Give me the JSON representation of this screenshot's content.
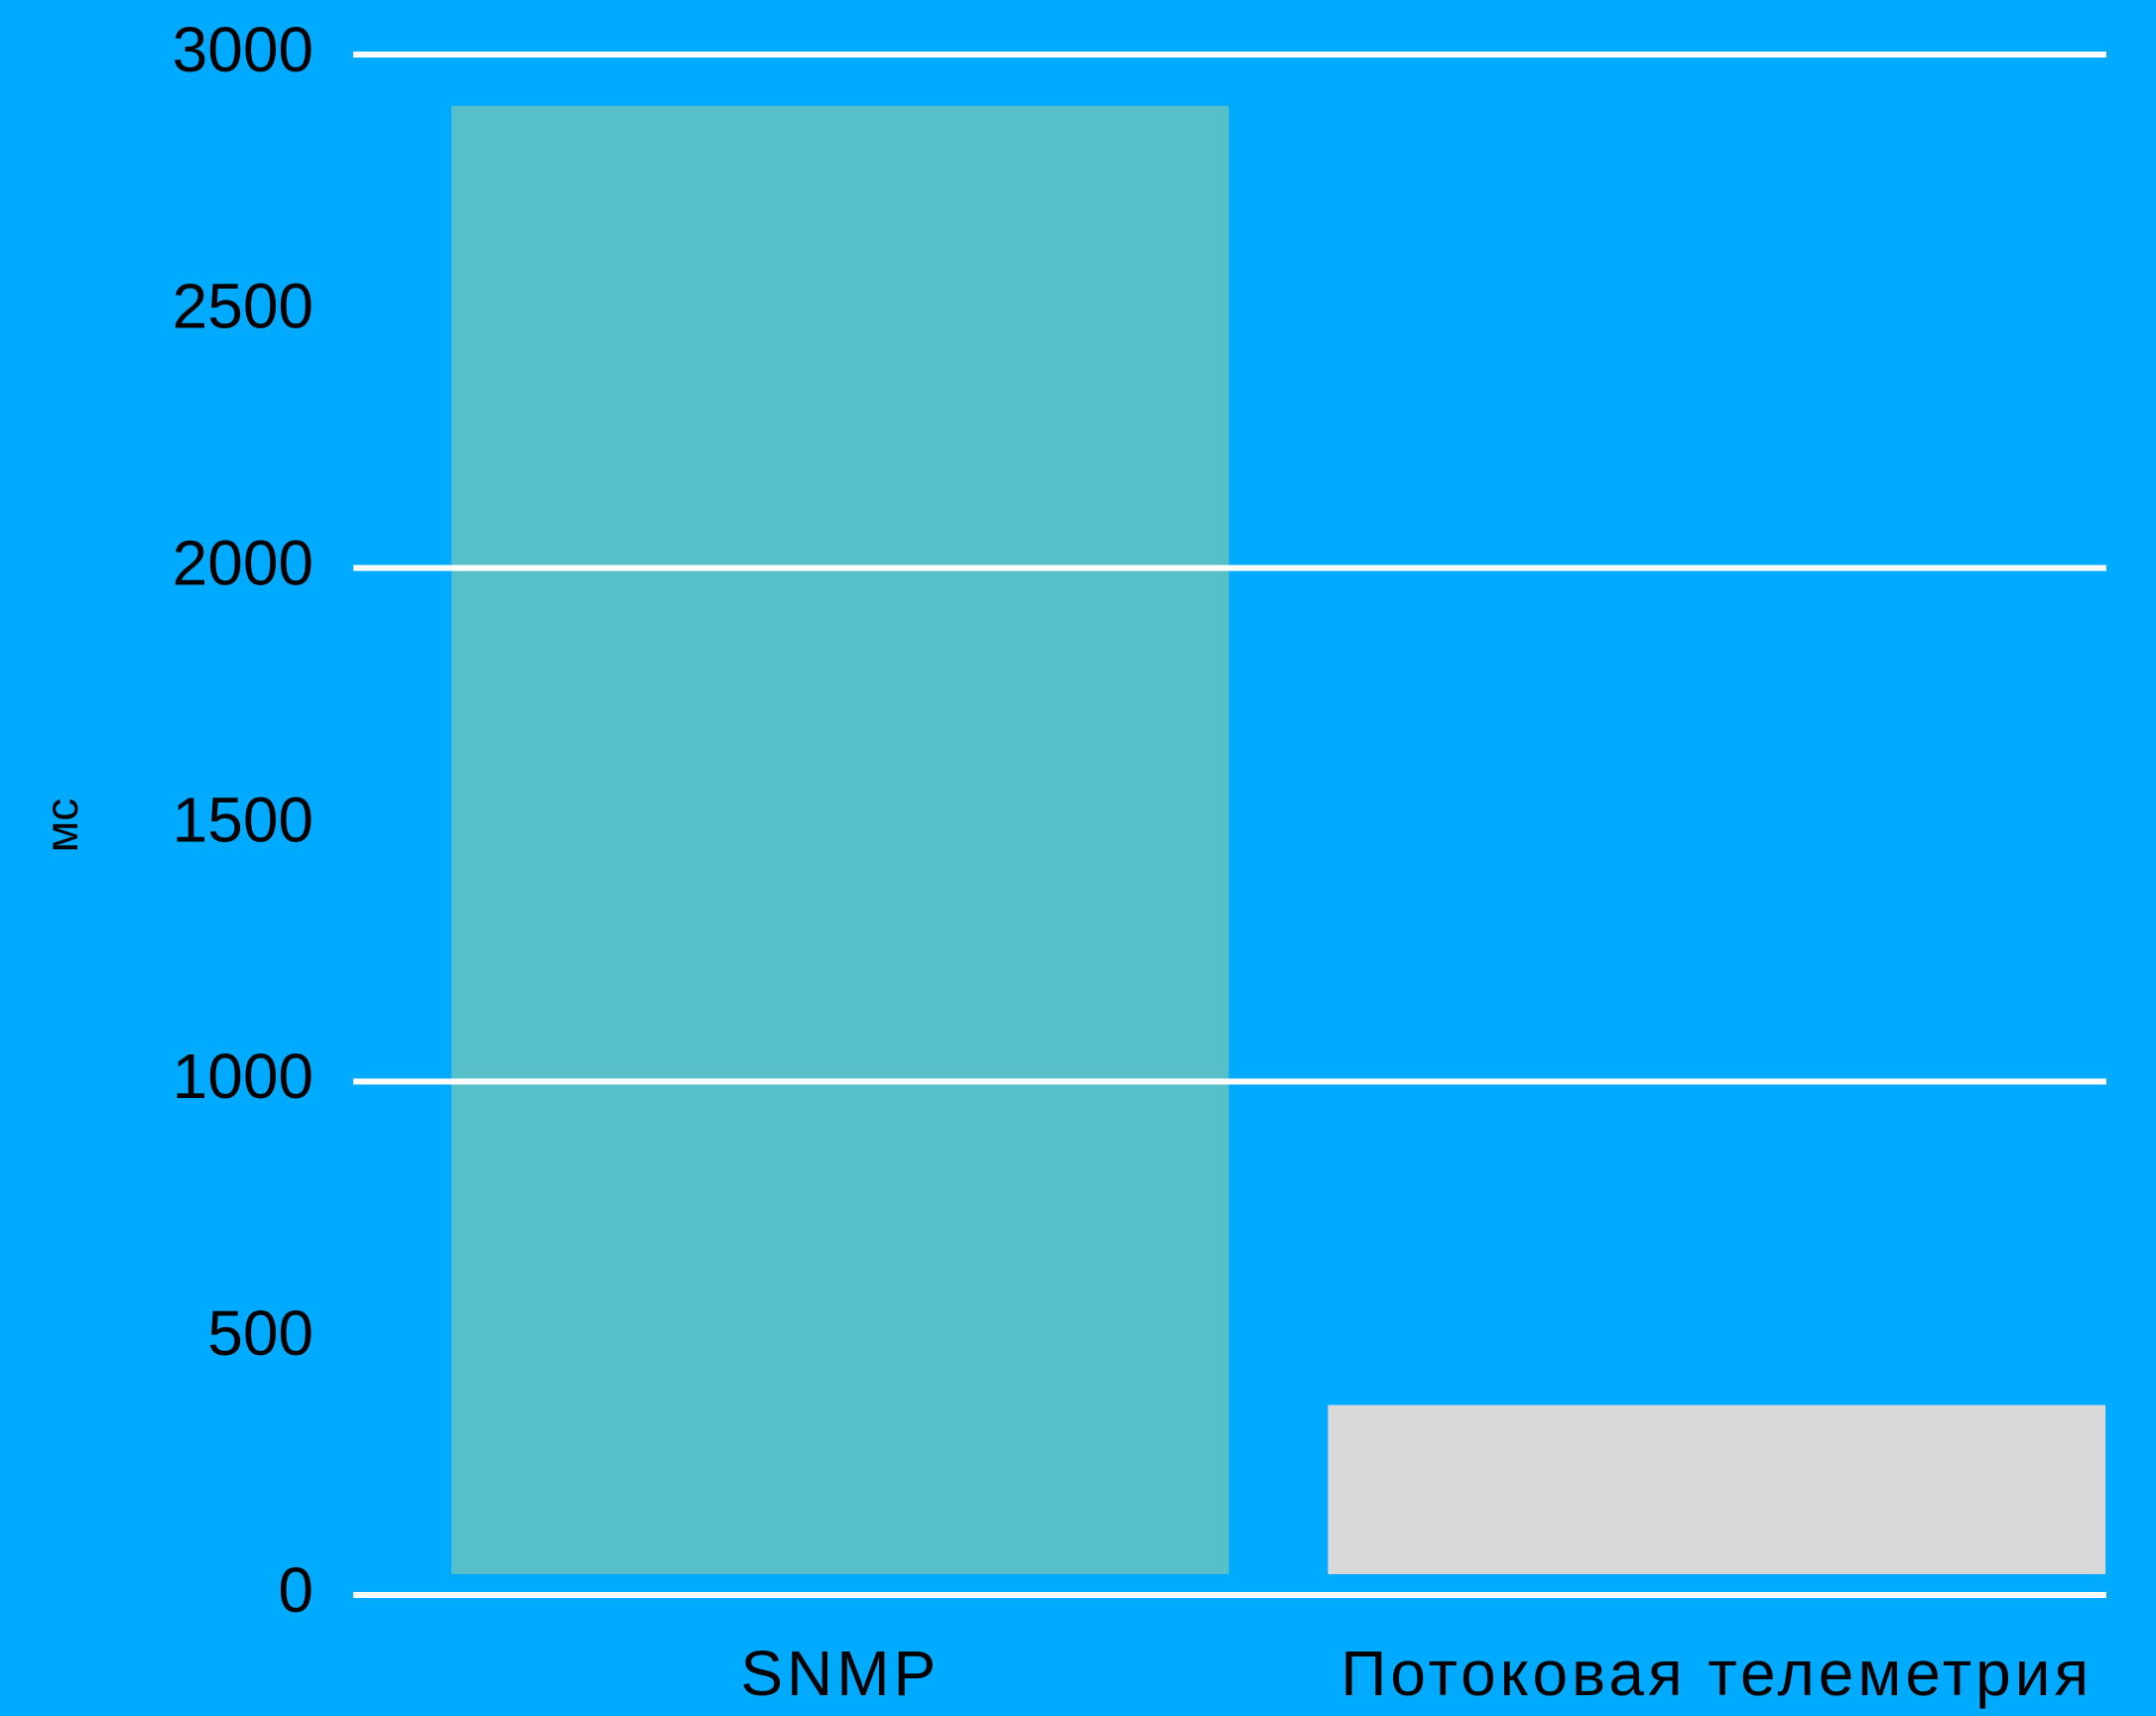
{
  "chart_data": {
    "type": "bar",
    "categories": [
      "SNMP",
      "Потоковая телеметрия"
    ],
    "values": [
      2900,
      370
    ],
    "colors": [
      "#56bfca",
      "#d9d9d9"
    ],
    "y_label": "мс",
    "ylim": [
      0,
      3000
    ],
    "yticks": [
      0,
      500,
      1000,
      1500,
      2000,
      2500,
      3000
    ],
    "grid": true,
    "grid_lines": [
      0,
      1000,
      2000,
      3000
    ]
  }
}
